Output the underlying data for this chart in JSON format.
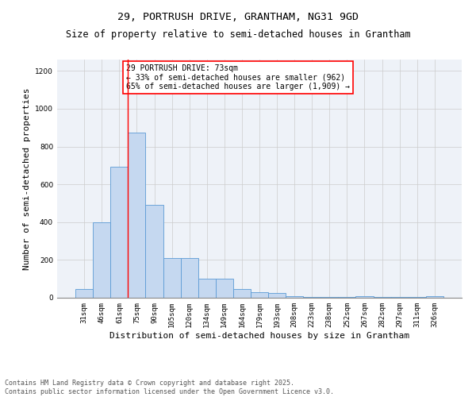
{
  "title_line1": "29, PORTRUSH DRIVE, GRANTHAM, NG31 9GD",
  "title_line2": "Size of property relative to semi-detached houses in Grantham",
  "xlabel": "Distribution of semi-detached houses by size in Grantham",
  "ylabel": "Number of semi-detached properties",
  "categories": [
    "31sqm",
    "46sqm",
    "61sqm",
    "75sqm",
    "90sqm",
    "105sqm",
    "120sqm",
    "134sqm",
    "149sqm",
    "164sqm",
    "179sqm",
    "193sqm",
    "208sqm",
    "223sqm",
    "238sqm",
    "252sqm",
    "267sqm",
    "282sqm",
    "297sqm",
    "311sqm",
    "326sqm"
  ],
  "values": [
    45,
    400,
    695,
    875,
    490,
    210,
    210,
    100,
    100,
    45,
    30,
    25,
    10,
    5,
    5,
    5,
    10,
    5,
    5,
    5,
    10
  ],
  "bar_color": "#c5d8f0",
  "bar_edge_color": "#5b9bd5",
  "vline_pos": 2.5,
  "vline_color": "red",
  "annotation_title": "29 PORTRUSH DRIVE: 73sqm",
  "annotation_line2": "← 33% of semi-detached houses are smaller (962)",
  "annotation_line3": "65% of semi-detached houses are larger (1,909) →",
  "ylim": [
    0,
    1260
  ],
  "yticks": [
    0,
    200,
    400,
    600,
    800,
    1000,
    1200
  ],
  "grid_color": "#cccccc",
  "background_color": "#eef2f8",
  "footer_line1": "Contains HM Land Registry data © Crown copyright and database right 2025.",
  "footer_line2": "Contains public sector information licensed under the Open Government Licence v3.0.",
  "title_fontsize": 9.5,
  "subtitle_fontsize": 8.5,
  "axis_label_fontsize": 8,
  "tick_fontsize": 6.5,
  "annotation_fontsize": 7,
  "footer_fontsize": 6
}
